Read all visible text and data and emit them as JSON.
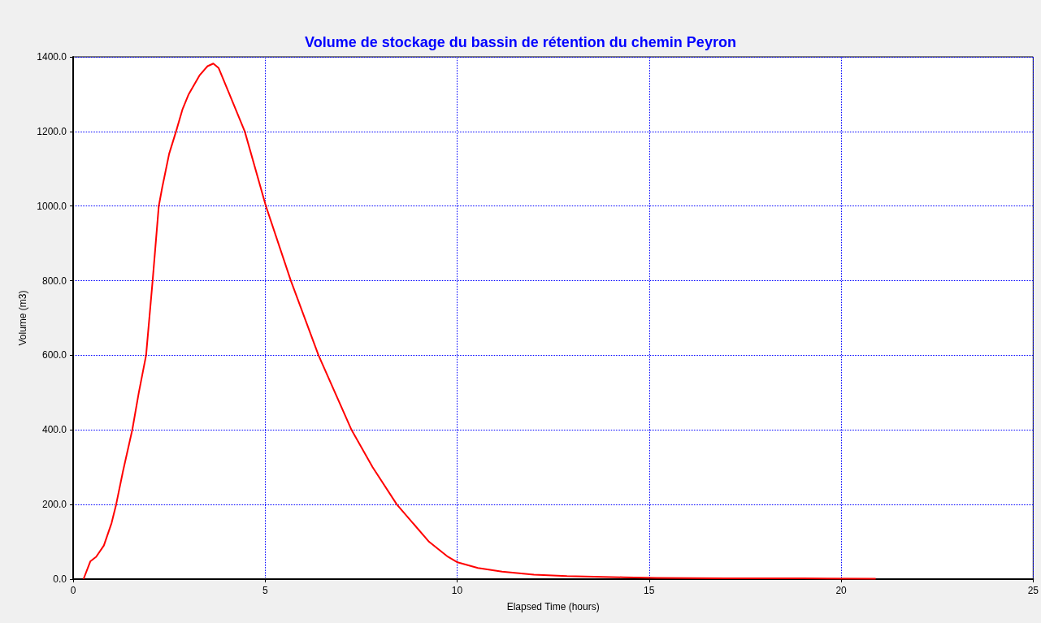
{
  "chart_data": {
    "type": "line",
    "title": "Volume de stockage du bassin de rétention du chemin Peyron",
    "xlabel": "Elapsed Time (hours)",
    "ylabel": "Volume (m3)",
    "series": [
      {
        "color": "#ff0000",
        "x": [
          0.27,
          0.45,
          0.6,
          0.8,
          1.0,
          1.12,
          1.3,
          1.54,
          1.71,
          1.9,
          2.07,
          2.23,
          2.32,
          2.5,
          2.68,
          2.85,
          3.01,
          3.29,
          3.5,
          3.65,
          3.79,
          4.07,
          4.47,
          5.02,
          5.67,
          6.39,
          7.25,
          7.8,
          8.43,
          9.27,
          9.76,
          10.01,
          10.54,
          11.17,
          12.0,
          12.86,
          14.33,
          15.2,
          17,
          19,
          20.9
        ],
        "values": [
          0,
          48,
          60,
          90,
          150,
          200,
          290,
          400,
          500,
          600,
          800,
          1000,
          1050,
          1140,
          1200,
          1260,
          1300,
          1350,
          1375,
          1382,
          1370,
          1300,
          1200,
          1000,
          800,
          600,
          400,
          300,
          200,
          100,
          60,
          45,
          30,
          20,
          12,
          8,
          5,
          3,
          2,
          2,
          1
        ]
      }
    ],
    "xlim": [
      0,
      25
    ],
    "xticks": [
      0,
      5,
      10,
      15,
      20,
      25
    ],
    "ylim": [
      0,
      1400
    ],
    "yticks": [
      {
        "value": 0,
        "label": "0.0"
      },
      {
        "value": 200,
        "label": "200.0"
      },
      {
        "value": 400,
        "label": "400.0"
      },
      {
        "value": 600,
        "label": "600.0"
      },
      {
        "value": 800,
        "label": "800.0"
      },
      {
        "value": 1000,
        "label": "1000.0"
      },
      {
        "value": 1200,
        "label": "1200.0"
      },
      {
        "value": 1400,
        "label": "1400.0"
      }
    ],
    "grid": true,
    "marker": "none",
    "line_style": "solid"
  }
}
